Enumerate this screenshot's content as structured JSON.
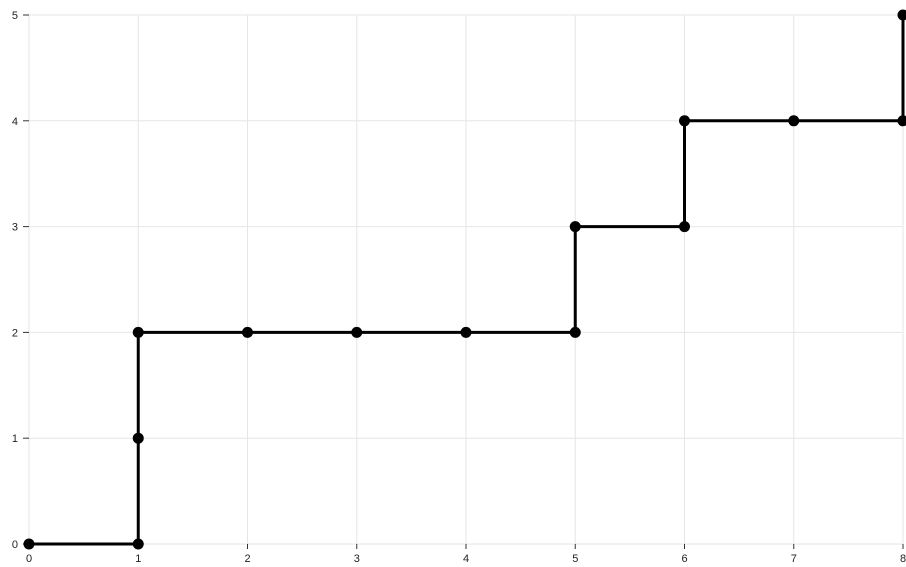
{
  "chart_data": {
    "type": "line",
    "title": "",
    "xlabel": "",
    "ylabel": "",
    "xlim": [
      0,
      8
    ],
    "ylim": [
      0,
      5
    ],
    "x_ticks": [
      "0",
      "1",
      "2",
      "3",
      "4",
      "5",
      "6",
      "7",
      "8"
    ],
    "y_ticks": [
      "0",
      "1",
      "2",
      "3",
      "4",
      "5"
    ],
    "grid": true,
    "legend": "none",
    "series": [
      {
        "color": "#000000",
        "points": [
          {
            "x": 0,
            "y": 0
          },
          {
            "x": 1,
            "y": 0
          },
          {
            "x": 1,
            "y": 1
          },
          {
            "x": 1,
            "y": 2
          },
          {
            "x": 2,
            "y": 2
          },
          {
            "x": 3,
            "y": 2
          },
          {
            "x": 4,
            "y": 2
          },
          {
            "x": 5,
            "y": 2
          },
          {
            "x": 5,
            "y": 3
          },
          {
            "x": 6,
            "y": 3
          },
          {
            "x": 6,
            "y": 4
          },
          {
            "x": 7,
            "y": 4
          },
          {
            "x": 8,
            "y": 4
          },
          {
            "x": 8,
            "y": 5
          }
        ]
      }
    ]
  }
}
